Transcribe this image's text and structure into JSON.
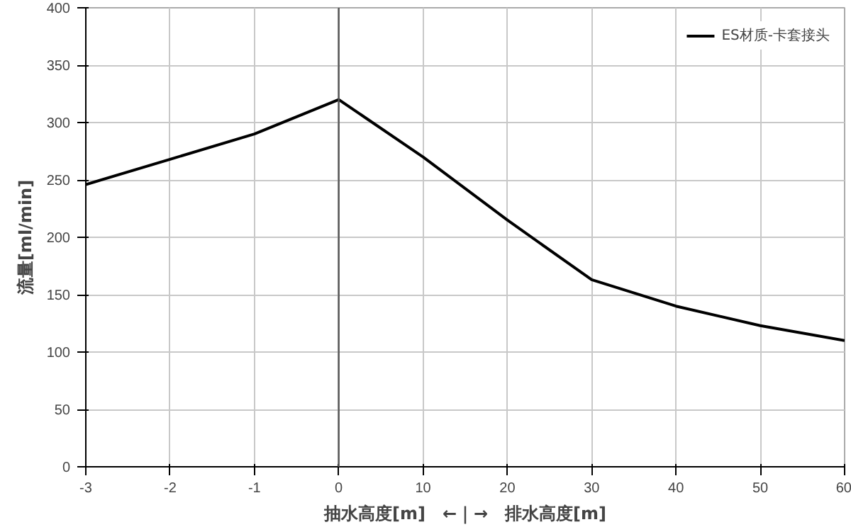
{
  "chart_data": {
    "type": "line",
    "xlabel": "抽水高度[m]　←｜→　排水高度[m]",
    "ylabel": "流量[ml/min]",
    "categories": [
      "-3",
      "-2",
      "-1",
      "0",
      "10",
      "20",
      "30",
      "40",
      "50",
      "60"
    ],
    "series": [
      {
        "name": "ES材质-卡套接头",
        "color": "#000000",
        "values": [
          246,
          268,
          290,
          320,
          270,
          215,
          163,
          140,
          123,
          110
        ]
      }
    ],
    "ylim": [
      0,
      400
    ],
    "yticks": [
      0,
      50,
      100,
      150,
      200,
      250,
      300,
      350,
      400
    ],
    "ref_lines": [
      {
        "axis": "x",
        "value": "0",
        "color": "#555555"
      }
    ],
    "grid": true,
    "legend": "top right",
    "marker": "none",
    "line_style": "solid"
  }
}
